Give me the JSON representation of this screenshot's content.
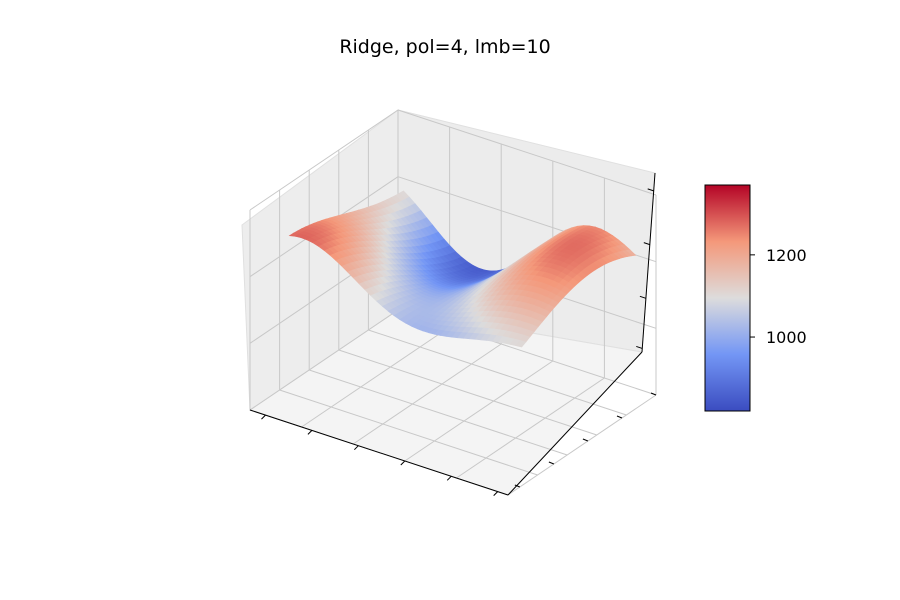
{
  "chart_data": {
    "type": "surface3d",
    "title": "Ridge, pol=4, lmb=10",
    "xlabel": "",
    "ylabel": "",
    "zlabel": "",
    "colormap": "coolwarm",
    "colorbar": {
      "min": 820,
      "max": 1370,
      "ticks": [
        1000,
        1200
      ],
      "tick_labels": [
        "1000",
        "1200"
      ]
    },
    "z_range": [
      820,
      1370
    ],
    "grid": true,
    "colors": {
      "low": "#3b4cc0",
      "mid": "#dddcdc",
      "high": "#b40426"
    }
  }
}
